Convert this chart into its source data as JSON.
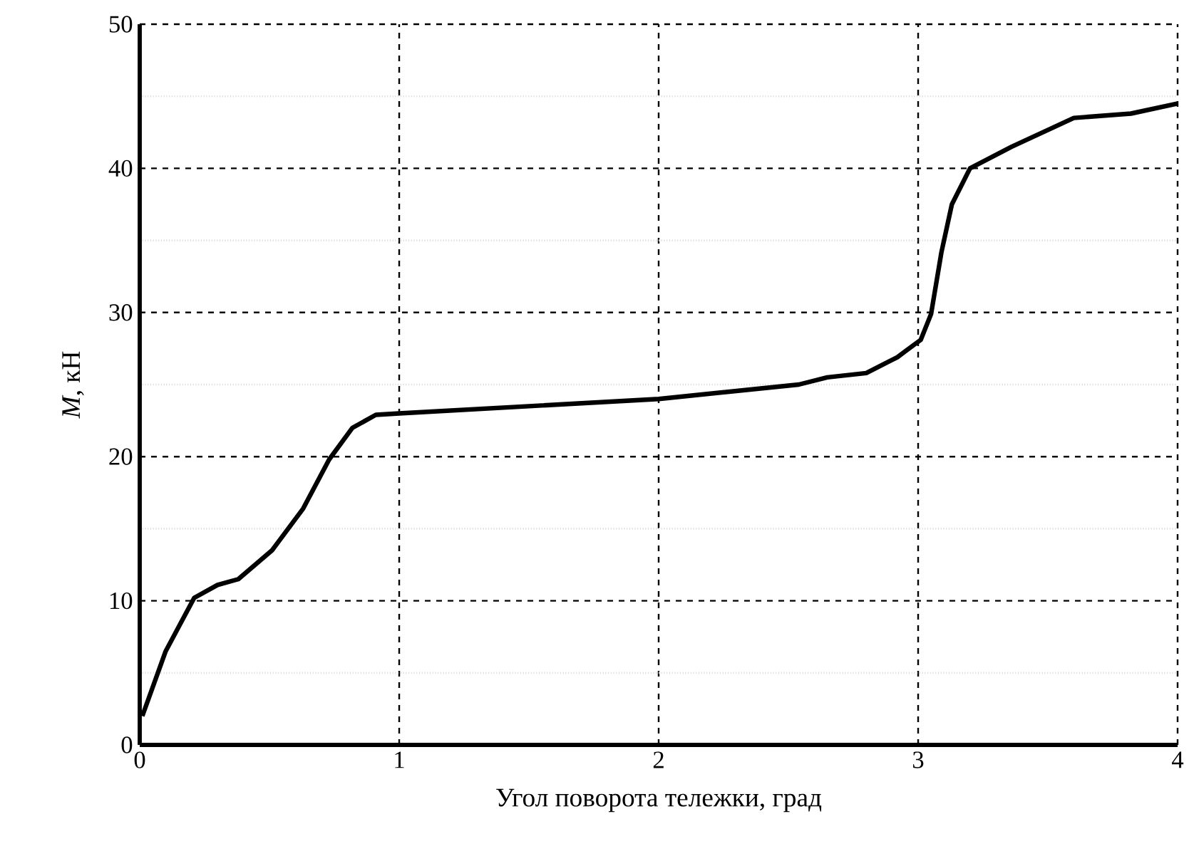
{
  "chart_data": {
    "type": "line",
    "xlabel": "Угол поворота тележки, град",
    "ylabel": "*M*, кН",
    "xlim": [
      0,
      4
    ],
    "ylim": [
      0,
      50
    ],
    "xticks": [
      0,
      1,
      2,
      3,
      4
    ],
    "yticks": [
      0,
      10,
      20,
      30,
      40,
      50
    ],
    "grid": true,
    "line_style": "solid",
    "marker": "none",
    "series": [
      {
        "color": "#000000",
        "x": [
          0.01,
          0.1,
          0.21,
          0.3,
          0.38,
          0.51,
          0.63,
          0.73,
          0.82,
          0.91,
          1.0,
          1.5,
          2.0,
          2.54,
          2.65,
          2.8,
          2.92,
          3.01,
          3.05,
          3.09,
          3.13,
          3.2,
          3.36,
          3.6,
          3.82,
          4.0
        ],
        "values": [
          2.0,
          6.5,
          10.2,
          11.1,
          11.5,
          13.5,
          16.4,
          19.8,
          22.0,
          22.9,
          23.0,
          23.5,
          24.0,
          25.0,
          25.5,
          25.8,
          26.9,
          28.1,
          29.9,
          34.2,
          37.5,
          40.0,
          41.5,
          43.5,
          43.8,
          44.5
        ]
      }
    ]
  }
}
